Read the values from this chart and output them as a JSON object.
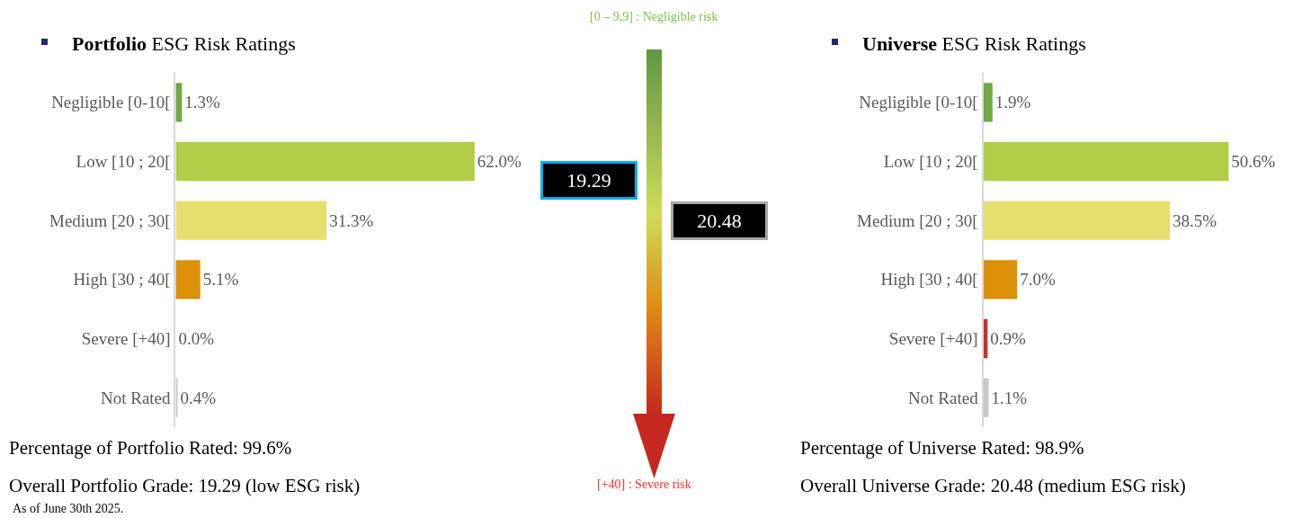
{
  "chart_data": [
    {
      "type": "bar",
      "orientation": "horizontal",
      "title": "Portfolio ESG Risk Ratings",
      "categories": [
        "Negligible [0-10[",
        "Low [10 ; 20[",
        "Medium [20 ; 30[",
        "High [30 ; 40[",
        "Severe [+40]",
        "Not Rated"
      ],
      "values": [
        1.3,
        62.0,
        31.3,
        5.1,
        0.0,
        0.4
      ],
      "value_labels": [
        "1.3%",
        "62.0%",
        "31.3%",
        "5.1%",
        "0.0%",
        "0.4%"
      ],
      "colors": [
        "#70a845",
        "#b2cd47",
        "#e6df6e",
        "#dd9108",
        "#c0392b",
        "#c8c8c8"
      ],
      "annotations": [
        "Percentage of Portfolio Rated: 99.6%",
        "Overall Portfolio Grade: 19.29 (low ESG risk)",
        "As of June 30th 2025."
      ]
    },
    {
      "type": "other",
      "annotations": [
        "[0 – 9,9] : Negligible risk",
        "19.29",
        "20.48",
        "[+40] : Severe risk"
      ]
    },
    {
      "type": "bar",
      "orientation": "horizontal",
      "title": "Universe ESG Risk Ratings",
      "categories": [
        "Negligible [0-10[",
        "Low [10 ; 20[",
        "Medium [20 ; 30[",
        "High [30 ; 40[",
        "Severe [+40]",
        "Not Rated"
      ],
      "values": [
        1.9,
        50.6,
        38.5,
        7.0,
        0.9,
        1.1
      ],
      "value_labels": [
        "1.9%",
        "50.6%",
        "38.5%",
        "7.0%",
        "0.9%",
        "1.1%"
      ],
      "colors": [
        "#70a845",
        "#b2cd47",
        "#e6df6e",
        "#dd9108",
        "#c9302c",
        "#c8c8c8"
      ],
      "annotations": [
        "Percentage of Universe Rated: 98.9%",
        "Overall Universe Grade: 20.48 (medium ESG risk)"
      ]
    }
  ]
}
